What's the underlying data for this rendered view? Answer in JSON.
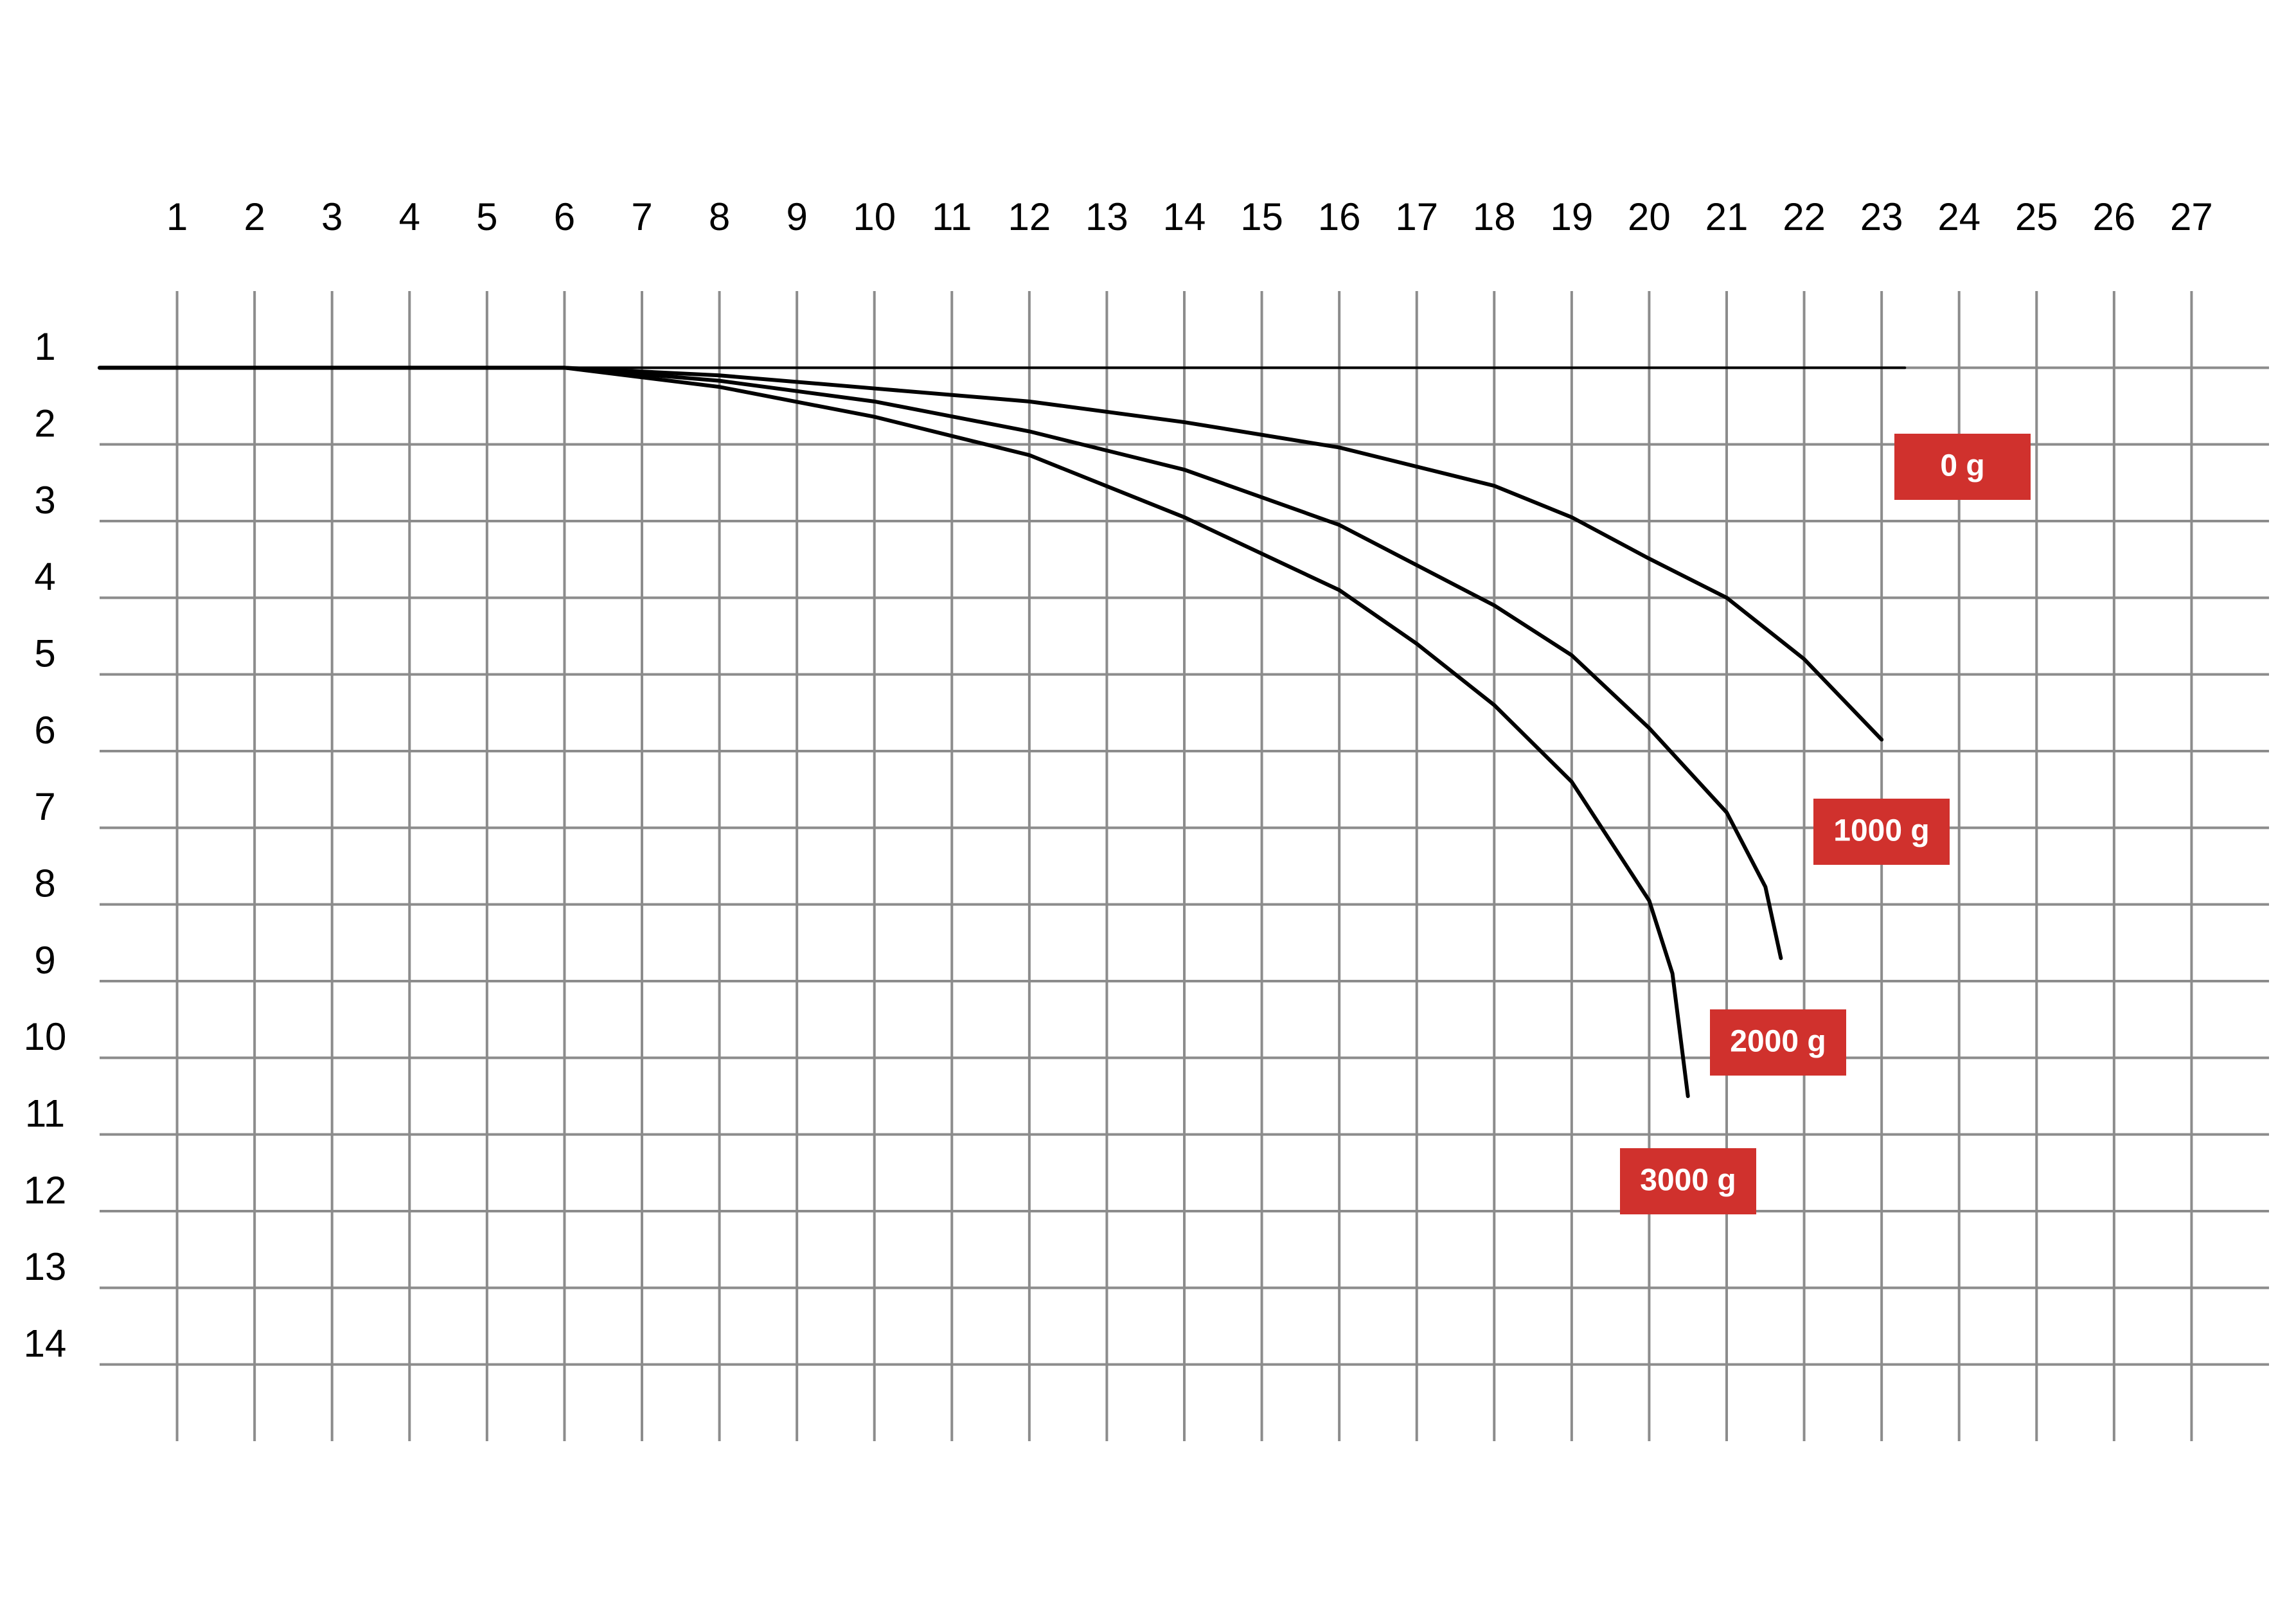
{
  "chart_data": {
    "type": "line",
    "xlim": [
      0,
      28
    ],
    "ylim": [
      0,
      15
    ],
    "xticks": [
      1,
      2,
      3,
      4,
      5,
      6,
      7,
      8,
      9,
      10,
      11,
      12,
      13,
      14,
      15,
      16,
      17,
      18,
      19,
      20,
      21,
      22,
      23,
      24,
      25,
      26,
      27
    ],
    "yticks": [
      1,
      2,
      3,
      4,
      5,
      6,
      7,
      8,
      9,
      10,
      11,
      12,
      13,
      14
    ],
    "y_inverted": true,
    "grid": true,
    "grid_color": "#8c8c8c",
    "label_color": "#d0312d",
    "series": [
      {
        "name": "0 g",
        "color": "#000000",
        "x": [
          0,
          5,
          10,
          15,
          20,
          23.3
        ],
        "values": [
          1,
          1,
          1,
          1,
          1,
          1
        ]
      },
      {
        "name": "1000 g",
        "color": "#000000",
        "x": [
          0,
          6,
          8,
          10,
          12,
          14,
          16,
          18,
          19,
          20,
          21,
          22,
          23
        ],
        "values": [
          1,
          1,
          1.1,
          1.27,
          1.44,
          1.71,
          2.04,
          2.54,
          2.95,
          3.49,
          4.0,
          4.8,
          5.85
        ]
      },
      {
        "name": "2000 g",
        "color": "#000000",
        "x": [
          0,
          6,
          8,
          10,
          12,
          14,
          16,
          18,
          19,
          20,
          21,
          21.5,
          21.7
        ],
        "values": [
          1,
          1,
          1.17,
          1.44,
          1.83,
          2.33,
          3.05,
          4.1,
          4.75,
          5.7,
          6.8,
          7.77,
          8.7
        ]
      },
      {
        "name": "3000 g",
        "color": "#000000",
        "x": [
          0,
          6,
          8,
          10,
          12,
          14,
          16,
          17,
          18,
          19,
          20,
          20.3,
          20.5
        ],
        "values": [
          1,
          1,
          1.25,
          1.64,
          2.14,
          2.95,
          3.9,
          4.6,
          5.4,
          6.4,
          7.95,
          8.9,
          10.5
        ]
      }
    ]
  }
}
